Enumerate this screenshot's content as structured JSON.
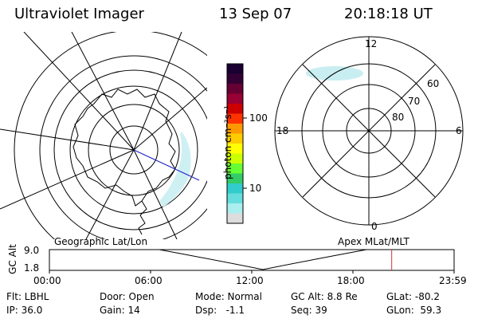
{
  "header": {
    "instrument": "Ultraviolet Imager",
    "date": "13 Sep 07",
    "time": "20:18:18 UT"
  },
  "colorbar": {
    "unit_label": "photon cm⁻²s⁻¹",
    "ticks": [
      "100",
      "10"
    ],
    "colors": [
      "#1a0033",
      "#330033",
      "#660033",
      "#990033",
      "#cc0000",
      "#ff3300",
      "#ff9900",
      "#ffcc00",
      "#ffff00",
      "#ccff00",
      "#66ff33",
      "#33cc66",
      "#33cccc",
      "#66dddd",
      "#aaeeee",
      "#dddddd"
    ]
  },
  "polar_plot": {
    "mlt_labels": {
      "top": "12",
      "left": "18",
      "right": "6",
      "bottom": "0"
    },
    "lat_labels": [
      "60",
      "70",
      "80"
    ]
  },
  "orbit": {
    "left_label": "Geographic Lat/Lon",
    "right_label": "Apex MLat/MLT",
    "axis_label": "GC Alt",
    "y_ticks": [
      "9.0",
      "1.8"
    ],
    "x_ticks": [
      "00:00",
      "06:00",
      "12:00",
      "18:00",
      "23:59"
    ],
    "marker_time_hours": 20.3
  },
  "footer": {
    "row1": {
      "filter": "Flt: LBHL",
      "door": "Door: Open",
      "mode": "Mode: Normal",
      "gc_alt": "GC Alt: 8.8 Re",
      "glat": "GLat: -80.2"
    },
    "row2": {
      "ip": "IP: 36.0",
      "gain": "Gain: 14",
      "dsp": "Dsp:   -1.1",
      "seq": "Seq: 39",
      "glon": "GLon:  59.3"
    }
  }
}
